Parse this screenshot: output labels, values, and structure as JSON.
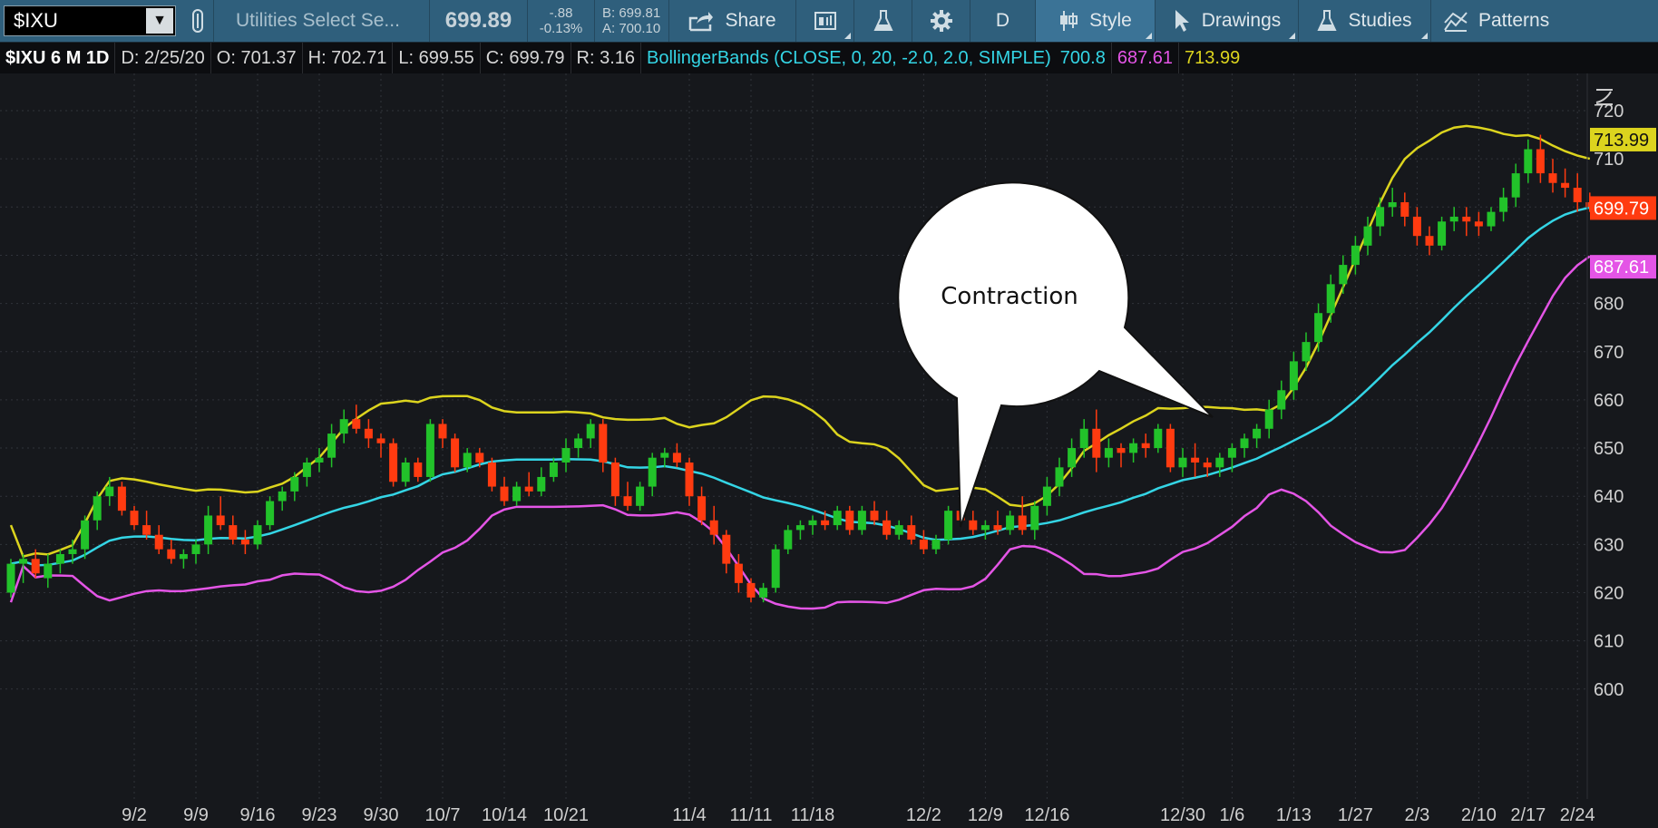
{
  "toolbar": {
    "symbol": "$IXU",
    "description": "Utilities Select Se...",
    "last": "699.89",
    "change": "-.88",
    "change_pct": "-0.13%",
    "bid": "B: 699.81",
    "ask": "A: 700.10",
    "share_label": "Share",
    "aggregation": "D",
    "style_label": "Style",
    "drawings_label": "Drawings",
    "studies_label": "Studies",
    "patterns_label": "Patterns"
  },
  "infobar": {
    "title": "$IXU 6 M 1D",
    "date": "D: 2/25/20",
    "open": "O: 701.37",
    "high": "H: 702.71",
    "low": "L: 699.55",
    "close": "C: 699.79",
    "range": "R: 3.16",
    "study": "BollingerBands (CLOSE, 0, 20, -2.0, 2.0, SIMPLE)",
    "mid": "700.8",
    "lower": "687.61",
    "upper": "713.99"
  },
  "annotation": {
    "text": "Contraction"
  },
  "colors": {
    "up": "#22c22a",
    "down": "#ff3b10",
    "mid": "#34d5e5",
    "lower": "#e455e6",
    "upper": "#dcd41e"
  },
  "chart_data": {
    "type": "candlestick",
    "ylim": [
      595,
      726
    ],
    "y_ticks": [
      600,
      610,
      620,
      630,
      640,
      650,
      660,
      670,
      680,
      690,
      700,
      710,
      720
    ],
    "y_tick_labels": [
      "600",
      "610",
      "620",
      "630",
      "640",
      "650",
      "660",
      "670",
      "680",
      "",
      "",
      "710",
      "720"
    ],
    "x_ticks": [
      {
        "label": "9/2",
        "i": 10
      },
      {
        "label": "9/9",
        "i": 15
      },
      {
        "label": "9/16",
        "i": 20
      },
      {
        "label": "9/23",
        "i": 25
      },
      {
        "label": "9/30",
        "i": 30
      },
      {
        "label": "10/7",
        "i": 35
      },
      {
        "label": "10/14",
        "i": 40
      },
      {
        "label": "10/21",
        "i": 45
      },
      {
        "label": "11/4",
        "i": 55
      },
      {
        "label": "11/11",
        "i": 60
      },
      {
        "label": "11/18",
        "i": 65
      },
      {
        "label": "12/2",
        "i": 74
      },
      {
        "label": "12/9",
        "i": 79
      },
      {
        "label": "12/16",
        "i": 84
      },
      {
        "label": "12/30",
        "i": 95
      },
      {
        "label": "1/6",
        "i": 99
      },
      {
        "label": "1/13",
        "i": 104
      },
      {
        "label": "1/27",
        "i": 109
      },
      {
        "label": "2/3",
        "i": 114
      },
      {
        "label": "2/10",
        "i": 119
      },
      {
        "label": "2/17",
        "i": 123
      },
      {
        "label": "2/24",
        "i": 127
      }
    ],
    "price_labels": [
      {
        "value": 713.99,
        "text": "713.99",
        "color": "#dcd41e"
      },
      {
        "value": 699.79,
        "text": "699.79",
        "color": "#ff3b10"
      },
      {
        "value": 687.61,
        "text": "687.61",
        "color": "#e455e6"
      }
    ],
    "candles": [
      [
        620,
        627,
        619,
        626
      ],
      [
        626,
        628,
        622,
        627
      ],
      [
        627,
        629,
        623,
        624
      ],
      [
        623,
        628,
        621,
        626
      ],
      [
        626,
        629,
        624,
        628
      ],
      [
        628,
        631,
        626,
        629
      ],
      [
        629,
        636,
        627,
        635
      ],
      [
        635,
        641,
        633,
        640
      ],
      [
        640,
        644,
        638,
        642
      ],
      [
        642,
        643,
        636,
        637
      ],
      [
        637,
        638,
        633,
        634
      ],
      [
        634,
        637,
        631,
        632
      ],
      [
        632,
        634,
        628,
        629
      ],
      [
        629,
        631,
        626,
        627
      ],
      [
        627,
        629,
        625,
        628
      ],
      [
        628,
        631,
        626,
        630
      ],
      [
        630,
        638,
        628,
        636
      ],
      [
        636,
        640,
        633,
        634
      ],
      [
        634,
        636,
        630,
        631
      ],
      [
        631,
        633,
        628,
        630
      ],
      [
        630,
        635,
        629,
        634
      ],
      [
        634,
        640,
        633,
        639
      ],
      [
        639,
        642,
        637,
        641
      ],
      [
        641,
        645,
        639,
        644
      ],
      [
        644,
        648,
        642,
        647
      ],
      [
        647,
        650,
        645,
        648
      ],
      [
        648,
        655,
        646,
        653
      ],
      [
        653,
        658,
        651,
        656
      ],
      [
        656,
        659,
        653,
        654
      ],
      [
        654,
        656,
        650,
        652
      ],
      [
        652,
        653,
        648,
        651
      ],
      [
        651,
        652,
        642,
        643
      ],
      [
        643,
        648,
        642,
        647
      ],
      [
        647,
        648,
        643,
        644
      ],
      [
        644,
        656,
        643,
        655
      ],
      [
        655,
        656,
        650,
        652
      ],
      [
        652,
        653,
        645,
        646
      ],
      [
        646,
        650,
        645,
        649
      ],
      [
        649,
        650,
        646,
        647
      ],
      [
        647,
        648,
        641,
        642
      ],
      [
        642,
        644,
        638,
        639
      ],
      [
        639,
        643,
        638,
        642
      ],
      [
        642,
        645,
        640,
        641
      ],
      [
        641,
        646,
        640,
        644
      ],
      [
        644,
        648,
        643,
        647
      ],
      [
        647,
        652,
        645,
        650
      ],
      [
        650,
        653,
        648,
        652
      ],
      [
        652,
        656,
        650,
        655
      ],
      [
        655,
        656,
        645,
        647
      ],
      [
        647,
        648,
        638,
        640
      ],
      [
        640,
        643,
        637,
        638
      ],
      [
        638,
        643,
        637,
        642
      ],
      [
        642,
        649,
        640,
        648
      ],
      [
        648,
        650,
        646,
        649
      ],
      [
        649,
        651,
        646,
        647
      ],
      [
        647,
        648,
        638,
        640
      ],
      [
        640,
        642,
        634,
        635
      ],
      [
        635,
        638,
        630,
        632
      ],
      [
        632,
        633,
        624,
        626
      ],
      [
        626,
        628,
        620,
        622
      ],
      [
        622,
        623,
        618,
        619
      ],
      [
        619,
        622,
        618,
        621
      ],
      [
        621,
        630,
        620,
        629
      ],
      [
        629,
        634,
        628,
        633
      ],
      [
        633,
        635,
        631,
        634
      ],
      [
        634,
        636,
        632,
        635
      ],
      [
        635,
        637,
        633,
        634
      ],
      [
        634,
        638,
        633,
        637
      ],
      [
        637,
        638,
        632,
        633
      ],
      [
        633,
        638,
        632,
        637
      ],
      [
        637,
        639,
        634,
        635
      ],
      [
        635,
        637,
        631,
        632
      ],
      [
        632,
        635,
        631,
        634
      ],
      [
        634,
        636,
        630,
        631
      ],
      [
        631,
        633,
        628,
        629
      ],
      [
        629,
        632,
        628,
        631
      ],
      [
        631,
        638,
        630,
        637
      ],
      [
        637,
        640,
        634,
        635
      ],
      [
        635,
        637,
        632,
        633
      ],
      [
        633,
        635,
        631,
        634
      ],
      [
        634,
        637,
        632,
        633
      ],
      [
        633,
        637,
        632,
        636
      ],
      [
        636,
        640,
        632,
        633
      ],
      [
        633,
        639,
        631,
        638
      ],
      [
        638,
        644,
        636,
        642
      ],
      [
        642,
        648,
        640,
        646
      ],
      [
        646,
        652,
        644,
        650
      ],
      [
        650,
        656,
        648,
        654
      ],
      [
        654,
        658,
        645,
        648
      ],
      [
        648,
        652,
        646,
        650
      ],
      [
        650,
        651,
        646,
        649
      ],
      [
        649,
        652,
        647,
        651
      ],
      [
        651,
        653,
        648,
        650
      ],
      [
        650,
        655,
        649,
        654
      ],
      [
        654,
        655,
        645,
        646
      ],
      [
        646,
        650,
        644,
        648
      ],
      [
        648,
        651,
        644,
        647
      ],
      [
        647,
        648,
        644,
        646
      ],
      [
        646,
        649,
        644,
        648
      ],
      [
        648,
        651,
        645,
        650
      ],
      [
        650,
        653,
        648,
        652
      ],
      [
        652,
        655,
        650,
        654
      ],
      [
        654,
        660,
        652,
        658
      ],
      [
        658,
        664,
        656,
        662
      ],
      [
        662,
        670,
        660,
        668
      ],
      [
        668,
        674,
        666,
        672
      ],
      [
        672,
        680,
        670,
        678
      ],
      [
        678,
        686,
        676,
        684
      ],
      [
        684,
        690,
        682,
        688
      ],
      [
        688,
        694,
        686,
        692
      ],
      [
        692,
        698,
        690,
        696
      ],
      [
        696,
        702,
        694,
        700
      ],
      [
        700,
        704,
        698,
        701
      ],
      [
        701,
        703,
        696,
        698
      ],
      [
        698,
        700,
        692,
        694
      ],
      [
        694,
        696,
        690,
        692
      ],
      [
        692,
        698,
        691,
        697
      ],
      [
        697,
        700,
        695,
        698
      ],
      [
        698,
        700,
        694,
        697
      ],
      [
        697,
        699,
        694,
        696
      ],
      [
        696,
        700,
        695,
        699
      ],
      [
        699,
        704,
        697,
        702
      ],
      [
        702,
        709,
        700,
        707
      ],
      [
        707,
        714,
        705,
        712
      ],
      [
        712,
        715,
        705,
        707
      ],
      [
        707,
        710,
        703,
        705
      ],
      [
        705,
        708,
        702,
        704
      ],
      [
        704,
        707,
        699,
        701
      ],
      [
        701,
        703,
        699,
        700
      ]
    ]
  }
}
